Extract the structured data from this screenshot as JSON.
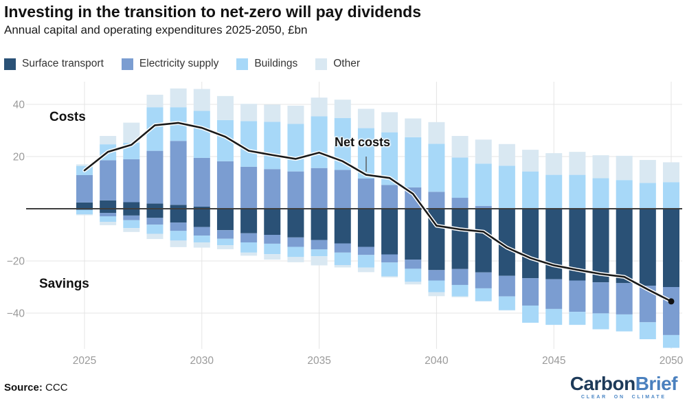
{
  "header": {
    "title": "Investing in the transition to net-zero will pay dividends",
    "subtitle": "Annual capital and operating expenditures 2025-2050, £bn"
  },
  "legend": [
    {
      "label": "Surface transport",
      "color": "#2a5176"
    },
    {
      "label": "Electricity supply",
      "color": "#7b9dd1"
    },
    {
      "label": "Buildings",
      "color": "#a7d8f8"
    },
    {
      "label": "Other",
      "color": "#d9e8f2"
    }
  ],
  "annotations": {
    "costs": "Costs",
    "savings": "Savings",
    "net_costs": "Net costs"
  },
  "source": {
    "prefix": "Source:",
    "text": " CCC"
  },
  "logo": {
    "part1": "Carbon",
    "part2": "Brief",
    "tagline": "CLEAR ON CLIMATE"
  },
  "chart_data": {
    "type": "bar",
    "subtype": "stacked-diverging-with-line",
    "title": "Investing in the transition to net-zero will pay dividends",
    "unit": "£bn",
    "years": [
      2025,
      2026,
      2027,
      2028,
      2029,
      2030,
      2031,
      2032,
      2033,
      2034,
      2035,
      2036,
      2037,
      2038,
      2039,
      2040,
      2041,
      2042,
      2043,
      2044,
      2045,
      2046,
      2047,
      2048,
      2049,
      2050
    ],
    "x_tick_labels": [
      "2025",
      "2030",
      "2035",
      "2040",
      "2045",
      "2050"
    ],
    "x_tick_years": [
      2025,
      2030,
      2035,
      2040,
      2045,
      2050
    ],
    "y_ticks": [
      {
        "v": 40,
        "label": "40"
      },
      {
        "v": 20,
        "label": "20"
      },
      {
        "v": -20,
        "label": "−20"
      },
      {
        "v": -40,
        "label": "−40"
      }
    ],
    "ylim": [
      -55,
      48
    ],
    "grid": true,
    "series_positive": [
      {
        "name": "Surface transport",
        "color": "#2a5176",
        "values": [
          2.4,
          3.2,
          2.5,
          2.0,
          1.5,
          0.8,
          0,
          0,
          0,
          0,
          0,
          0,
          0,
          0,
          0,
          0,
          0,
          0,
          0,
          0,
          0,
          0,
          0,
          0,
          0,
          0
        ]
      },
      {
        "name": "Electricity supply",
        "color": "#7b9dd1",
        "values": [
          10.5,
          15.4,
          16.5,
          20.2,
          24.5,
          18.7,
          18.2,
          16.1,
          15.2,
          14.3,
          15.6,
          14.9,
          11.6,
          9.1,
          8.2,
          6.5,
          4.2,
          1.1,
          0,
          0,
          0,
          0,
          0,
          0,
          0,
          0
        ]
      },
      {
        "name": "Buildings",
        "color": "#a7d8f8",
        "values": [
          3.5,
          6.1,
          6.3,
          16.7,
          12.9,
          18.0,
          15.8,
          17.5,
          18.1,
          18.2,
          19.8,
          19.9,
          19.3,
          20.2,
          19.2,
          18.4,
          15.4,
          16.2,
          16.5,
          14.3,
          13.0,
          13.0,
          11.7,
          11.0,
          9.9,
          10.2
        ]
      },
      {
        "name": "Other",
        "color": "#d9e8f2",
        "values": [
          0.6,
          3.2,
          7.7,
          4.8,
          7.2,
          8.4,
          9.2,
          6.6,
          6.6,
          7.0,
          7.2,
          7.0,
          7.4,
          7.7,
          7.2,
          8.3,
          8.3,
          9.2,
          8.3,
          8.3,
          8.3,
          8.8,
          8.8,
          9.3,
          8.8,
          7.6
        ]
      }
    ],
    "series_negative": [
      {
        "name": "Surface transport",
        "color": "#2a5176",
        "values": [
          0.4,
          1.6,
          2.6,
          3.5,
          5.3,
          7.0,
          8.2,
          9.4,
          10.0,
          11.0,
          12.0,
          13.3,
          14.6,
          17.5,
          19.5,
          23.5,
          23.1,
          24.4,
          25.7,
          26.6,
          27.0,
          27.5,
          28.2,
          28.5,
          29.5,
          30.0
        ]
      },
      {
        "name": "Electricity supply",
        "color": "#7b9dd1",
        "values": [
          0,
          1.3,
          1.8,
          2.6,
          3.2,
          3.3,
          3.3,
          3.5,
          3.4,
          3.6,
          3.6,
          3.5,
          3.1,
          3.1,
          3.5,
          4.0,
          6.1,
          6.1,
          7.9,
          10.5,
          11.4,
          12.0,
          11.9,
          12.0,
          14.0,
          18.4
        ]
      },
      {
        "name": "Buildings",
        "color": "#a7d8f8",
        "values": [
          1.7,
          2.1,
          3.0,
          3.5,
          3.7,
          2.6,
          2.5,
          3.9,
          4.0,
          3.9,
          2.6,
          4.8,
          4.8,
          5.3,
          5.0,
          4.5,
          4.4,
          4.9,
          5.3,
          6.6,
          6.1,
          5.0,
          6.1,
          6.5,
          6.5,
          4.9
        ]
      },
      {
        "name": "Other",
        "color": "#d9e8f2",
        "values": [
          0.4,
          1.3,
          1.5,
          2.0,
          2.5,
          2.0,
          1.5,
          1.2,
          2.1,
          2.0,
          3.5,
          0.9,
          1.8,
          0.4,
          1.0,
          1.5,
          0.3,
          0.1,
          0.1,
          0,
          0,
          0,
          0,
          0,
          0,
          0
        ]
      }
    ],
    "line_series": {
      "name": "Net costs",
      "color": "#1a1a1a",
      "values": [
        14.7,
        21.8,
        24.5,
        32.0,
        32.9,
        31.0,
        27.6,
        22.2,
        20.6,
        19.1,
        21.5,
        18.2,
        13.0,
        11.8,
        5.7,
        -6.5,
        -7.9,
        -8.8,
        -14.9,
        -18.9,
        -21.7,
        -23.4,
        -25.0,
        -26.1,
        -30.9,
        -35.5
      ]
    }
  }
}
